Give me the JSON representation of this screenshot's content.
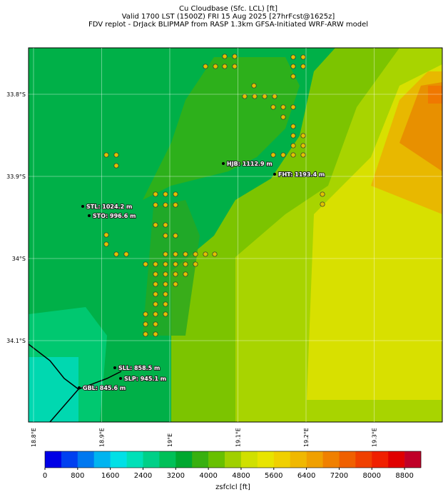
{
  "map": {
    "title_lines": [
      "Cu Cloudbase (Sfc. LCL) [ft]",
      "Valid 1700 LST (1500Z) FRI 15 Aug 2025 [27hrFcst@1625z]",
      "FDV replot - DrJack BLIPMAP from RASP 1.3km GFSA-Initiated WRF-ARW model"
    ],
    "lat_ticks": [
      {
        "value": -33.8,
        "label": "33.8°S"
      },
      {
        "value": -33.9,
        "label": "33.9°S"
      },
      {
        "value": -34.0,
        "label": "34°S"
      },
      {
        "value": -34.1,
        "label": "34.1°S"
      }
    ],
    "lon_ticks": [
      {
        "value": 18.8,
        "label": "18.8°E"
      },
      {
        "value": 18.9,
        "label": "18.9°E"
      },
      {
        "value": 19.0,
        "label": "19°E"
      },
      {
        "value": 19.1,
        "label": "19.1°E"
      },
      {
        "value": 19.2,
        "label": "19.2°E"
      },
      {
        "value": 19.3,
        "label": "19.3°E"
      }
    ],
    "stations": [
      "HJB: 1112.9 m",
      "FHT: 1193.4 m",
      "STL: 1024.2 m",
      "STO: 996.6 m",
      "SLL: 858.5 m",
      "SLP: 945.1 m",
      "GBL: 845.6 m"
    ]
  },
  "colorbar": {
    "label": "zsfclcl [ft]",
    "lim": [
      0,
      9200
    ],
    "ticks": [
      0,
      800,
      1600,
      2400,
      3200,
      4000,
      4800,
      5600,
      6400,
      7200,
      8000,
      8800
    ],
    "colors": [
      "#0000e6",
      "#0040f0",
      "#0078f0",
      "#00b4f0",
      "#00e0e6",
      "#00e0b8",
      "#00d088",
      "#00c058",
      "#00a830",
      "#38b010",
      "#68c000",
      "#a0d000",
      "#d0e000",
      "#e8e400",
      "#f0d000",
      "#f0b800",
      "#f0a000",
      "#f08000",
      "#f06000",
      "#f04000",
      "#f02000",
      "#e00000",
      "#c00028"
    ]
  }
}
